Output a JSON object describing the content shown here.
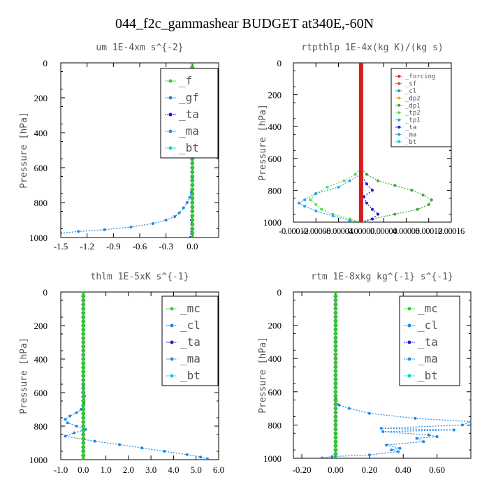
{
  "figure_title": "044_f2c_gammashear  BUDGET at340E,-60N",
  "colors": {
    "f": "#33cc33",
    "gf": "#1e88e5",
    "ta": "#1a1ad9",
    "ma": "#2b8fd6",
    "bt": "#00d4c8",
    "mc": "#33cc33",
    "cl": "#1e88e5",
    "forcing": "#d81b1b",
    "sf": "#e53935",
    "dp2": "#e6a817",
    "dp1": "#2eaa2e",
    "tp2": "#55dd55",
    "tp1": "#2a9df4"
  },
  "chart_data": [
    {
      "type": "line",
      "title": "um   1E-4xm  s^{-2}",
      "ylabel": "Pressure [hPa]",
      "xlim": [
        -1.5,
        0.3
      ],
      "ylim": [
        0,
        1000
      ],
      "y_inverted": true,
      "xticks": [
        "-1.5",
        "-1.2",
        "-0.9",
        "-0.6",
        "-0.3",
        "0.0"
      ],
      "xtick_values": [
        -1.5,
        -1.2,
        -0.9,
        -0.6,
        -0.3,
        0.0
      ],
      "yticks": [
        "0",
        "200",
        "400",
        "600",
        "800",
        "1000"
      ],
      "legend": [
        "_f",
        "_gf",
        "_ta",
        "_ma",
        "_bt"
      ],
      "legend_keys": [
        "f",
        "gf",
        "ta",
        "ma",
        "bt"
      ],
      "legend_size": "large",
      "series": [
        {
          "name": "_f",
          "key": "f",
          "x": [
            0.0,
            0.0,
            0.0,
            0.0,
            0.0,
            0.0,
            0.0,
            0.0,
            0.0,
            0.0,
            0.0
          ],
          "y": [
            0,
            100,
            200,
            300,
            400,
            500,
            600,
            700,
            800,
            900,
            1000
          ]
        },
        {
          "name": "_gf",
          "key": "gf",
          "x": [
            0,
            0,
            0,
            0,
            0,
            0,
            -0.01,
            -0.03,
            -0.06,
            -0.1,
            -0.15,
            -0.2,
            -0.3,
            -0.45,
            -0.7,
            -1.0,
            -1.3,
            -1.5
          ],
          "y": [
            0,
            200,
            400,
            600,
            660,
            700,
            740,
            770,
            800,
            830,
            860,
            880,
            900,
            920,
            940,
            955,
            965,
            975
          ]
        },
        {
          "name": "_ta",
          "key": "ta",
          "x": [
            0,
            0,
            0,
            0,
            -0.01,
            -0.02
          ],
          "y": [
            0,
            400,
            700,
            800,
            900,
            1000
          ]
        },
        {
          "name": "_ma",
          "key": "ma",
          "x": [
            0,
            0,
            0,
            0,
            0,
            0
          ],
          "y": [
            0,
            200,
            400,
            600,
            800,
            1000
          ]
        },
        {
          "name": "_bt",
          "key": "bt",
          "x": [
            0,
            0,
            0,
            0,
            0,
            0
          ],
          "y": [
            0,
            200,
            400,
            600,
            800,
            1000
          ]
        }
      ]
    },
    {
      "type": "line",
      "title": "rtpthlp   1E-4x(kg K)/(kg s)",
      "ylabel": "Pressure [hPa]",
      "xlim": [
        -0.00012,
        0.00016
      ],
      "ylim": [
        0,
        1000
      ],
      "y_inverted": true,
      "xticks": [
        "-0.00012",
        "-0.00008",
        "-0.00004",
        "0.00000",
        "0.00004",
        "0.00008",
        "0.00012",
        "0.00016"
      ],
      "xtick_values": [
        -0.00012,
        -8e-05,
        -4e-05,
        0.0,
        4e-05,
        8e-05,
        0.00012,
        0.00016
      ],
      "yticks": [
        "0",
        "200",
        "400",
        "600",
        "800",
        "1000"
      ],
      "legend": [
        "_forcing",
        "_sf",
        "_cl",
        "_dp2",
        "_dp1",
        "_tp2",
        "_tp1",
        "_ta",
        "_ma",
        "_bt"
      ],
      "legend_keys": [
        "forcing",
        "sf",
        "cl",
        "dp2",
        "dp1",
        "tp2",
        "tp1",
        "ta",
        "ma",
        "bt"
      ],
      "legend_size": "small",
      "series": [
        {
          "name": "_forcing",
          "key": "forcing",
          "x": [
            0,
            0,
            0,
            0,
            0,
            0
          ],
          "y": [
            0,
            200,
            400,
            600,
            800,
            1000
          ]
        },
        {
          "name": "_sf",
          "key": "sf",
          "x": [
            0,
            0,
            0,
            0,
            0,
            0
          ],
          "y": [
            0,
            200,
            400,
            600,
            800,
            1000
          ]
        },
        {
          "name": "_dp1",
          "key": "dp1",
          "x": [
            0,
            0,
            1e-05,
            3e-05,
            6e-05,
            9e-05,
            0.00011,
            0.000125,
            0.00012,
            0.0001,
            6e-05,
            2e-05,
            0
          ],
          "y": [
            0,
            660,
            700,
            740,
            770,
            800,
            830,
            860,
            890,
            920,
            950,
            980,
            1000
          ]
        },
        {
          "name": "_tp2",
          "key": "tp2",
          "x": [
            0,
            0,
            -1e-05,
            -3e-05,
            -6e-05,
            -8e-05,
            -9e-05,
            -8e-05,
            -7e-05,
            -5e-05,
            -2e-05,
            0
          ],
          "y": [
            0,
            660,
            700,
            740,
            780,
            820,
            860,
            890,
            920,
            950,
            980,
            1000
          ]
        },
        {
          "name": "_tp1",
          "key": "tp1",
          "x": [
            0,
            0,
            -2e-05,
            -4e-05,
            -8e-05,
            -0.0001,
            -0.00011,
            -0.0001,
            -8e-05,
            -5e-05,
            -2e-05,
            0
          ],
          "y": [
            0,
            700,
            740,
            780,
            820,
            860,
            880,
            900,
            930,
            960,
            990,
            1000
          ]
        },
        {
          "name": "_ta",
          "key": "ta",
          "x": [
            0,
            0,
            1e-05,
            2e-05,
            5e-06,
            1e-05,
            2e-05,
            3e-05,
            2e-05,
            0
          ],
          "y": [
            0,
            700,
            760,
            800,
            840,
            880,
            920,
            950,
            980,
            1000
          ]
        }
      ]
    },
    {
      "type": "line",
      "title": "thlm   1E-5xK  s^{-1}",
      "ylabel": "Pressure [hPa]",
      "xlim": [
        -1.0,
        6.0
      ],
      "ylim": [
        0,
        1000
      ],
      "y_inverted": true,
      "xticks": [
        "-1.0",
        "0.0",
        "1.0",
        "2.0",
        "3.0",
        "4.0",
        "5.0",
        "6.0"
      ],
      "xtick_values": [
        -1.0,
        0.0,
        1.0,
        2.0,
        3.0,
        4.0,
        5.0,
        6.0
      ],
      "yticks": [
        "0",
        "200",
        "400",
        "600",
        "800",
        "1000"
      ],
      "legend": [
        "_mc",
        "_cl",
        "_ta",
        "_ma",
        "_bt"
      ],
      "legend_keys": [
        "mc",
        "cl",
        "ta",
        "ma",
        "bt"
      ],
      "legend_size": "large",
      "series": [
        {
          "name": "_mc",
          "key": "mc",
          "x": [
            0,
            0,
            0,
            0,
            0,
            0
          ],
          "y": [
            0,
            200,
            400,
            600,
            800,
            1000
          ]
        },
        {
          "name": "_cl",
          "key": "cl",
          "x": [
            0,
            0,
            0,
            0.02,
            0.05,
            0.03,
            -0.1,
            -0.3,
            -0.6,
            -0.8,
            -0.7,
            -0.3,
            0.1,
            -0.4,
            -0.8,
            0.5,
            1.6,
            2.6,
            3.6,
            4.6,
            5.2,
            5.5
          ],
          "y": [
            0,
            400,
            560,
            600,
            620,
            660,
            700,
            720,
            740,
            760,
            780,
            800,
            820,
            840,
            860,
            890,
            910,
            930,
            950,
            970,
            985,
            995
          ]
        },
        {
          "name": "_ta",
          "key": "ta",
          "x": [
            0,
            0,
            0,
            0
          ],
          "y": [
            0,
            600,
            800,
            1000
          ]
        },
        {
          "name": "_ma",
          "key": "ma",
          "x": [
            0,
            0,
            0,
            0
          ],
          "y": [
            0,
            400,
            800,
            1000
          ]
        },
        {
          "name": "_bt",
          "key": "bt",
          "x": [
            0,
            0,
            0,
            0
          ],
          "y": [
            0,
            400,
            800,
            1000
          ]
        }
      ]
    },
    {
      "type": "line",
      "title": "rtm   1E-8xkg  kg^{-1} s^{-1}",
      "ylabel": "Pressure [hPa]",
      "xlim": [
        -0.25,
        0.8
      ],
      "ylim": [
        0,
        1000
      ],
      "y_inverted": true,
      "xticks": [
        "-0.20",
        "0.00",
        "0.20",
        "0.40",
        "0.60"
      ],
      "xtick_values": [
        -0.2,
        0.0,
        0.2,
        0.4,
        0.6
      ],
      "yticks": [
        "0",
        "200",
        "400",
        "600",
        "800",
        "1000"
      ],
      "legend": [
        "_mc",
        "_cl",
        "_ta",
        "_ma",
        "_bt"
      ],
      "legend_keys": [
        "mc",
        "cl",
        "ta",
        "ma",
        "bt"
      ],
      "legend_size": "large",
      "series": [
        {
          "name": "_mc",
          "key": "mc",
          "x": [
            0,
            0,
            0,
            0,
            0,
            0
          ],
          "y": [
            0,
            200,
            400,
            600,
            800,
            1000
          ]
        },
        {
          "name": "_cl",
          "key": "cl",
          "x": [
            0,
            0,
            0,
            0.02,
            0.08,
            0.2,
            0.47,
            0.8,
            0.75,
            0.27,
            0.7,
            0.28,
            0.55,
            0.6,
            0.48,
            0.52,
            0.3,
            0.38,
            0.33,
            0.37,
            0.2,
            -0.02,
            -0.08
          ],
          "y": [
            0,
            500,
            640,
            680,
            700,
            730,
            760,
            780,
            800,
            820,
            830,
            840,
            860,
            870,
            880,
            900,
            920,
            940,
            950,
            960,
            980,
            990,
            998
          ]
        },
        {
          "name": "_ta",
          "key": "ta",
          "x": [
            0,
            0,
            0,
            0
          ],
          "y": [
            0,
            600,
            800,
            1000
          ]
        },
        {
          "name": "_ma",
          "key": "ma",
          "x": [
            0,
            0,
            0,
            0
          ],
          "y": [
            0,
            400,
            800,
            1000
          ]
        },
        {
          "name": "_bt",
          "key": "bt",
          "x": [
            0,
            0,
            0,
            0
          ],
          "y": [
            0,
            400,
            800,
            1000
          ]
        }
      ]
    }
  ]
}
